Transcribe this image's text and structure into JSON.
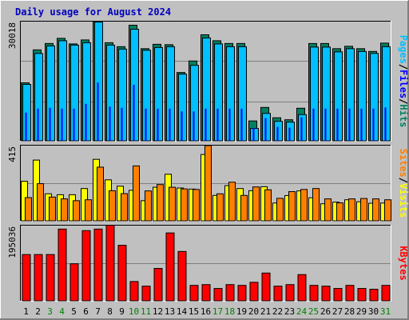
{
  "title": "Daily usage for August 2024",
  "colors": {
    "background": "#c0c0c0",
    "plot_bg": "#c0c0c0",
    "frame_dark": "#7f7f7f",
    "frame_light": "#ffffff",
    "title": "#0000c0",
    "hits": "#008060",
    "files": "#00c0ff",
    "pages": "#0000ff",
    "visits": "#ffff00",
    "sites": "#ff8000",
    "kbytes": "#ff0000",
    "weekend_day": "#008000",
    "weekday_day": "#000000"
  },
  "chart_data": [
    {
      "type": "bar",
      "panel": "hits-files-pages",
      "ytick_label": "30018",
      "ymax": 30018,
      "categories": [
        "1",
        "2",
        "3",
        "4",
        "5",
        "6",
        "7",
        "8",
        "9",
        "10",
        "11",
        "12",
        "13",
        "14",
        "15",
        "16",
        "17",
        "18",
        "19",
        "20",
        "21",
        "22",
        "23",
        "24",
        "25",
        "26",
        "27",
        "28",
        "29",
        "30",
        "31"
      ],
      "weekend": [
        3,
        4,
        10,
        11,
        17,
        18,
        24,
        25,
        31
      ],
      "series": [
        {
          "name": "Hits",
          "values": [
            14600,
            22900,
            24500,
            25800,
            24400,
            25400,
            30000,
            24700,
            23700,
            29100,
            23200,
            24300,
            24200,
            17200,
            20100,
            26700,
            25200,
            24500,
            24500,
            5000,
            8400,
            5800,
            5300,
            8200,
            24500,
            24500,
            23200,
            23800,
            23200,
            22500,
            24600
          ]
        },
        {
          "name": "Files",
          "values": [
            14200,
            22000,
            23900,
            25200,
            24100,
            24700,
            29900,
            24100,
            23100,
            28100,
            22800,
            23500,
            23700,
            16800,
            19000,
            25900,
            24400,
            23700,
            23700,
            3100,
            6900,
            4900,
            4700,
            6600,
            23600,
            23600,
            22400,
            23200,
            22500,
            22000,
            23700
          ]
        },
        {
          "name": "Pages",
          "values": [
            7100,
            8100,
            8300,
            8100,
            8100,
            9300,
            14700,
            8600,
            8300,
            14100,
            8100,
            8100,
            8100,
            7400,
            7400,
            8100,
            8100,
            8100,
            8100,
            3200,
            5700,
            3500,
            3300,
            5900,
            8100,
            8100,
            8100,
            8100,
            8100,
            8100,
            8400
          ]
        }
      ]
    },
    {
      "type": "bar",
      "panel": "visits-sites",
      "ytick_label": "415",
      "ymax": 415,
      "categories": [
        "1",
        "2",
        "3",
        "4",
        "5",
        "6",
        "7",
        "8",
        "9",
        "10",
        "11",
        "12",
        "13",
        "14",
        "15",
        "16",
        "17",
        "18",
        "19",
        "20",
        "21",
        "22",
        "23",
        "24",
        "25",
        "26",
        "27",
        "28",
        "29",
        "30",
        "31"
      ],
      "series": [
        {
          "name": "Visits",
          "values": [
            218,
            335,
            149,
            144,
            144,
            178,
            339,
            226,
            191,
            168,
            111,
            185,
            257,
            181,
            175,
            366,
            140,
            194,
            178,
            166,
            188,
            98,
            139,
            165,
            127,
            94,
            103,
            116,
            105,
            97,
            98
          ]
        },
        {
          "name": "Sites",
          "values": [
            128,
            205,
            131,
            121,
            111,
            116,
            296,
            166,
            150,
            303,
            165,
            200,
            185,
            176,
            173,
            415,
            149,
            213,
            140,
            187,
            171,
            124,
            161,
            173,
            178,
            121,
            99,
            121,
            123,
            121,
            116
          ]
        }
      ]
    },
    {
      "type": "bar",
      "panel": "kbytes",
      "ytick_label": "195036",
      "ymax": 195036,
      "categories": [
        "1",
        "2",
        "3",
        "4",
        "5",
        "6",
        "7",
        "8",
        "9",
        "10",
        "11",
        "12",
        "13",
        "14",
        "15",
        "16",
        "17",
        "18",
        "19",
        "20",
        "21",
        "22",
        "23",
        "24",
        "25",
        "26",
        "27",
        "28",
        "29",
        "30",
        "31"
      ],
      "series": [
        {
          "name": "KBytes",
          "values": [
            120000,
            120000,
            120000,
            186000,
            96000,
            182000,
            186000,
            196000,
            144000,
            50000,
            38000,
            84000,
            176000,
            128000,
            40000,
            42000,
            32000,
            42000,
            40000,
            48000,
            72000,
            38000,
            42000,
            68000,
            40000,
            38000,
            32000,
            40000,
            32000,
            30000,
            40000
          ]
        }
      ]
    }
  ],
  "side_labels": {
    "panel1": [
      "Pages",
      "/",
      "Files",
      "/",
      "Hits"
    ],
    "panel2": [
      "Sites",
      "/",
      "Visits"
    ],
    "panel3": [
      "KBytes"
    ]
  }
}
